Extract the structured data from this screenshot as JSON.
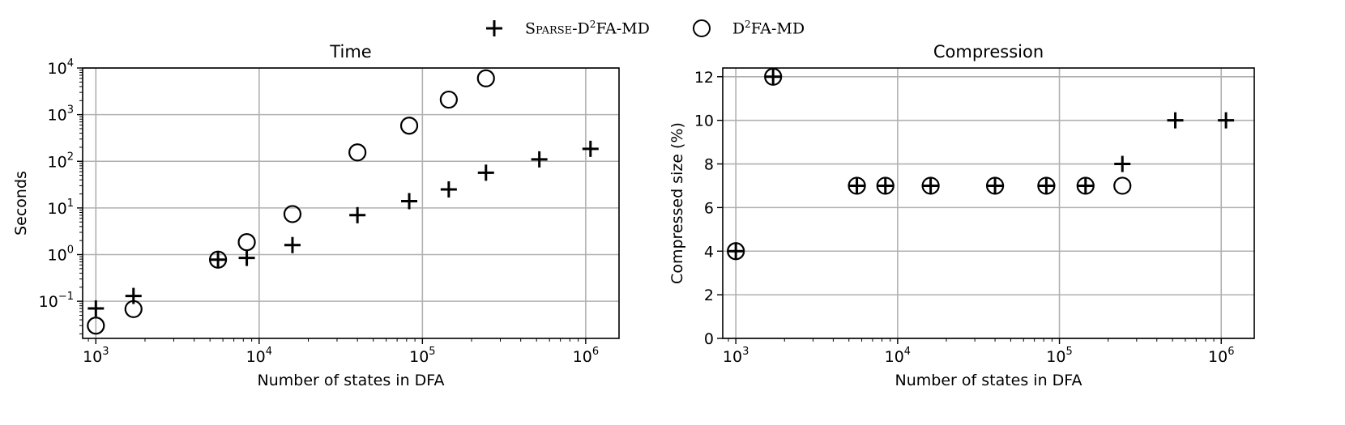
{
  "legend": {
    "series": [
      {
        "marker": "plus",
        "label_prefix": "Sparse-D",
        "label_sup": "2",
        "label_suffix": "FA-MD"
      },
      {
        "marker": "circle",
        "label_prefix": "D",
        "label_sup": "2",
        "label_suffix": "FA-MD"
      }
    ]
  },
  "chart_data": [
    {
      "type": "scatter",
      "title": "Time",
      "xlabel": "Number of states in DFA",
      "ylabel": "Seconds",
      "xscale": "log",
      "yscale": "log",
      "xlim": [
        830,
        1600000
      ],
      "ylim": [
        0.016,
        10000
      ],
      "grid": true,
      "xticks": [
        {
          "value": 1000,
          "label": "10",
          "exp": "3"
        },
        {
          "value": 10000,
          "label": "10",
          "exp": "4"
        },
        {
          "value": 100000,
          "label": "10",
          "exp": "5"
        },
        {
          "value": 1000000,
          "label": "10",
          "exp": "6"
        }
      ],
      "yticks": [
        {
          "value": 0.1,
          "label": "10",
          "exp": "−1"
        },
        {
          "value": 1,
          "label": "10",
          "exp": "0"
        },
        {
          "value": 10,
          "label": "10",
          "exp": "1"
        },
        {
          "value": 100,
          "label": "10",
          "exp": "2"
        },
        {
          "value": 1000,
          "label": "10",
          "exp": "3"
        },
        {
          "value": 10000,
          "label": "10",
          "exp": "4"
        }
      ],
      "series": [
        {
          "name": "Sparse-D2FA-MD",
          "marker": "plus",
          "x": [
            1000,
            1700,
            5600,
            8400,
            16000,
            40000,
            83000,
            145000,
            245000,
            520000,
            1070000
          ],
          "y": [
            0.07,
            0.13,
            0.78,
            0.85,
            1.6,
            7,
            14,
            25,
            57,
            110,
            185
          ]
        },
        {
          "name": "D2FA-MD",
          "marker": "circle",
          "x": [
            1000,
            1700,
            5600,
            8400,
            16000,
            40000,
            83000,
            145000,
            245000
          ],
          "y": [
            0.03,
            0.068,
            0.78,
            1.85,
            7.4,
            155,
            580,
            2100,
            6000
          ]
        }
      ]
    },
    {
      "type": "scatter",
      "title": "Compression",
      "xlabel": "Number of states in DFA",
      "ylabel": "Compressed size (%)",
      "xscale": "log",
      "yscale": "linear",
      "xlim": [
        830,
        1600000
      ],
      "ylim": [
        0,
        12.4
      ],
      "grid": true,
      "xticks": [
        {
          "value": 1000,
          "label": "10",
          "exp": "3"
        },
        {
          "value": 10000,
          "label": "10",
          "exp": "4"
        },
        {
          "value": 100000,
          "label": "10",
          "exp": "5"
        },
        {
          "value": 1000000,
          "label": "10",
          "exp": "6"
        }
      ],
      "yticks": [
        {
          "value": 0,
          "label": "0"
        },
        {
          "value": 2,
          "label": "2"
        },
        {
          "value": 4,
          "label": "4"
        },
        {
          "value": 6,
          "label": "6"
        },
        {
          "value": 8,
          "label": "8"
        },
        {
          "value": 10,
          "label": "10"
        },
        {
          "value": 12,
          "label": "12"
        }
      ],
      "series": [
        {
          "name": "Sparse-D2FA-MD",
          "marker": "plus",
          "x": [
            1000,
            1700,
            5600,
            8400,
            16000,
            40000,
            83000,
            145000,
            245000,
            520000,
            1070000
          ],
          "y": [
            4,
            12,
            7,
            7,
            7,
            7,
            7,
            7,
            8,
            10,
            10
          ]
        },
        {
          "name": "D2FA-MD",
          "marker": "circle",
          "x": [
            1000,
            1700,
            5600,
            8400,
            16000,
            40000,
            83000,
            145000,
            245000
          ],
          "y": [
            4,
            12,
            7,
            7,
            7,
            7,
            7,
            7,
            7
          ]
        }
      ]
    }
  ]
}
